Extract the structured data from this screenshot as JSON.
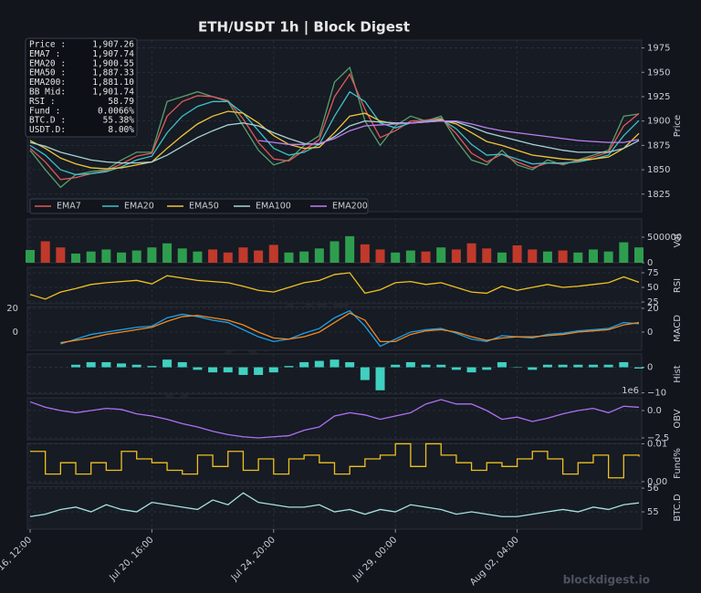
{
  "title": "ETH/USDT  1h  |  Block Digest",
  "watermark": "blockdigest.io",
  "info": [
    {
      "label": "Price  :",
      "value": "1,907.26"
    },
    {
      "label": "EMA7   :",
      "value": "1,907.74"
    },
    {
      "label": "EMA20  :",
      "value": "1,900.55"
    },
    {
      "label": "EMA50  :",
      "value": "1,887.33"
    },
    {
      "label": "EMA200:",
      "value": "1,881.10"
    },
    {
      "label": "BB Mid:",
      "value": "1,901.74"
    },
    {
      "label": "RSI    :",
      "value": "58.79"
    },
    {
      "label": "Fund   :",
      "value": "0.0066%"
    },
    {
      "label": "BTC.D :",
      "value": "55.38%"
    },
    {
      "label": "USDT.D:",
      "value": "8.00%"
    }
  ],
  "chart_data": [
    {
      "type": "line",
      "ylabel": "Price",
      "ylim": [
        1807,
        1983
      ],
      "yticks": [
        1825,
        1850,
        1875,
        1900,
        1925,
        1950,
        1975
      ],
      "grid": true,
      "values": [
        1870,
        1850,
        1832,
        1845,
        1848,
        1850,
        1860,
        1868,
        1868,
        1920,
        1925,
        1930,
        1925,
        1920,
        1895,
        1870,
        1855,
        1860,
        1875,
        1885,
        1940,
        1955,
        1900,
        1875,
        1895,
        1905,
        1900,
        1905,
        1880,
        1860,
        1855,
        1870,
        1855,
        1850,
        1860,
        1855,
        1860,
        1865,
        1870,
        1905,
        1907.26
      ],
      "color": "#5a9e6a",
      "legend": "lower left",
      "series": [
        {
          "name": "EMA7",
          "color": "#e05a5a",
          "values": [
            1872,
            1858,
            1840,
            1842,
            1846,
            1849,
            1856,
            1864,
            1867,
            1905,
            1920,
            1926,
            1925,
            1921,
            1902,
            1878,
            1861,
            1859,
            1870,
            1881,
            1925,
            1948,
            1912,
            1883,
            1890,
            1900,
            1901,
            1903,
            1887,
            1867,
            1858,
            1866,
            1858,
            1852,
            1857,
            1856,
            1859,
            1863,
            1868,
            1895,
            1907.74
          ]
        },
        {
          "name": "EMA20",
          "color": "#3fc1c9",
          "values": [
            1875,
            1865,
            1850,
            1845,
            1846,
            1848,
            1853,
            1860,
            1864,
            1888,
            1905,
            1915,
            1920,
            1920,
            1908,
            1890,
            1872,
            1865,
            1868,
            1876,
            1905,
            1930,
            1920,
            1898,
            1893,
            1898,
            1900,
            1902,
            1892,
            1876,
            1865,
            1866,
            1861,
            1856,
            1857,
            1857,
            1858,
            1861,
            1865,
            1885,
            1900.55
          ]
        },
        {
          "name": "EMA50",
          "color": "#f0c53a",
          "values": [
            1880,
            1872,
            1862,
            1856,
            1852,
            1851,
            1852,
            1855,
            1858,
            1872,
            1885,
            1897,
            1905,
            1910,
            1908,
            1898,
            1885,
            1876,
            1872,
            1873,
            1888,
            1905,
            1908,
            1900,
            1897,
            1898,
            1899,
            1901,
            1897,
            1888,
            1879,
            1875,
            1870,
            1865,
            1863,
            1861,
            1860,
            1861,
            1863,
            1872,
            1887.33
          ]
        },
        {
          "name": "EMA100",
          "color": "#a9d3d6",
          "values": [
            1878,
            1874,
            1868,
            1864,
            1860,
            1858,
            1857,
            1857,
            1858,
            1865,
            1874,
            1883,
            1890,
            1896,
            1898,
            1895,
            1888,
            1882,
            1877,
            1876,
            1884,
            1895,
            1900,
            1899,
            1898,
            1898,
            1899,
            1900,
            1899,
            1894,
            1888,
            1884,
            1880,
            1876,
            1873,
            1870,
            1868,
            1868,
            1868,
            1872,
            1880
          ]
        },
        {
          "name": "EMA200",
          "color": "#c07ef0",
          "values": [
            null,
            null,
            null,
            null,
            null,
            null,
            null,
            null,
            null,
            null,
            null,
            null,
            null,
            null,
            null,
            1880,
            1878,
            1876,
            1876,
            1877,
            1882,
            1890,
            1895,
            1896,
            1897,
            1898,
            1899,
            1900,
            1900,
            1897,
            1893,
            1890,
            1888,
            1886,
            1884,
            1882,
            1880,
            1879,
            1878,
            1878,
            1881.1
          ]
        }
      ]
    },
    {
      "type": "volume",
      "ylabel": "Vol",
      "ylim": [
        0,
        857000
      ],
      "yticks": [
        0,
        500000
      ],
      "grid": true,
      "up_color": "#2e9e4e",
      "down_color": "#c0392b",
      "values": [
        250000,
        420000,
        300000,
        180000,
        220000,
        260000,
        200000,
        240000,
        300000,
        380000,
        280000,
        220000,
        260000,
        200000,
        300000,
        240000,
        350000,
        200000,
        220000,
        280000,
        420000,
        520000,
        360000,
        260000,
        200000,
        240000,
        220000,
        300000,
        260000,
        380000,
        280000,
        200000,
        340000,
        260000,
        220000,
        240000,
        200000,
        260000,
        220000,
        400000,
        300000
      ]
    },
    {
      "type": "line",
      "ylabel": "RSI",
      "ylim": [
        21.9,
        84.4
      ],
      "yticks": [
        25,
        50,
        75
      ],
      "grid": true,
      "color": "#f0c020",
      "values": [
        38,
        30,
        42,
        48,
        55,
        58,
        60,
        62,
        56,
        70,
        66,
        62,
        60,
        58,
        52,
        45,
        42,
        50,
        58,
        62,
        72,
        75,
        40,
        46,
        58,
        60,
        55,
        58,
        50,
        42,
        40,
        52,
        45,
        50,
        55,
        50,
        52,
        55,
        58,
        68,
        58.79
      ]
    },
    {
      "type": "line",
      "ylabel": "MACD",
      "ylim": [
        -15.4,
        21.5
      ],
      "yticks": [
        0,
        20
      ],
      "grid": true,
      "left_ticks": true,
      "series": [
        {
          "color": "#1ea0e8",
          "values": [
            null,
            null,
            -10,
            -6,
            -2,
            0,
            2,
            4,
            5,
            12,
            15,
            13,
            10,
            8,
            2,
            -4,
            -8,
            -6,
            -1,
            3,
            12,
            18,
            5,
            -12,
            -6,
            0,
            2,
            3,
            -1,
            -6,
            -8,
            -3,
            -4,
            -5,
            -2,
            -1,
            1,
            2,
            3,
            8,
            7
          ]
        },
        {
          "color": "#f08a20",
          "values": [
            null,
            null,
            -9,
            -7,
            -5,
            -2,
            0,
            2,
            4,
            9,
            13,
            14,
            12,
            10,
            6,
            0,
            -5,
            -6,
            -4,
            0,
            8,
            16,
            10,
            -8,
            -8,
            -2,
            1,
            2,
            0,
            -4,
            -7,
            -5,
            -4,
            -4,
            -3,
            -2,
            0,
            1,
            2,
            6,
            8
          ]
        }
      ]
    },
    {
      "type": "bar",
      "ylabel": "Hist",
      "ylim": [
        -10.5,
        5.2
      ],
      "yticks": [
        {
          "value": -10,
          "label": "−10"
        },
        0
      ],
      "grid": true,
      "color": "#40d0c0",
      "values": [
        null,
        null,
        null,
        1,
        2,
        2,
        1.5,
        1,
        0.5,
        3,
        2,
        -1,
        -2,
        -2,
        -3,
        -3,
        -2,
        0.5,
        2,
        2.5,
        3,
        2,
        -5,
        -9,
        1,
        2,
        1,
        1,
        -1,
        -2,
        -1,
        2,
        0,
        -1,
        1,
        1,
        1,
        1,
        1,
        2,
        -0.5
      ]
    },
    {
      "type": "line",
      "ylabel": "OBV",
      "ylim": [
        -2.67,
        1.17
      ],
      "yticks": [
        {
          "value": -2.5,
          "label": "−2.5"
        },
        {
          "value": 0,
          "label": "0.0"
        }
      ],
      "offset_label": "1e6",
      "grid": true,
      "color": "#b070f0",
      "values": [
        0.8,
        0.3,
        0.0,
        -0.2,
        0.0,
        0.2,
        0.1,
        -0.3,
        -0.5,
        -0.8,
        -1.2,
        -1.5,
        -1.9,
        -2.2,
        -2.4,
        -2.5,
        -2.4,
        -2.3,
        -1.8,
        -1.5,
        -0.5,
        -0.2,
        -0.4,
        -0.8,
        -0.5,
        -0.2,
        0.6,
        1.0,
        0.6,
        0.6,
        0.0,
        -0.8,
        -0.6,
        -1.0,
        -0.7,
        -0.3,
        0.0,
        0.2,
        -0.2,
        0.4,
        0.3
      ]
    },
    {
      "type": "step",
      "ylabel": "Fund%",
      "ylim": [
        -0.0005,
        0.0101
      ],
      "yticks": [
        {
          "value": 0,
          "label": "0.00"
        },
        0.01
      ],
      "grid": true,
      "color": "#f0c020",
      "values": [
        0.008,
        0.002,
        0.005,
        0.002,
        0.005,
        0.003,
        0.008,
        0.006,
        0.005,
        0.003,
        0.002,
        0.007,
        0.004,
        0.008,
        0.003,
        0.006,
        0.002,
        0.006,
        0.007,
        0.005,
        0.002,
        0.004,
        0.006,
        0.007,
        0.01,
        0.004,
        0.01,
        0.007,
        0.005,
        0.003,
        0.005,
        0.004,
        0.006,
        0.008,
        0.006,
        0.002,
        0.005,
        0.007,
        0.001,
        0.007,
        0.0066
      ]
    },
    {
      "type": "line",
      "ylabel": "BTC.D",
      "ylim": [
        54.27,
        56.08
      ],
      "yticks": [
        55,
        56
      ],
      "grid": true,
      "color": "#a8e0e0",
      "values": [
        54.8,
        54.9,
        55.1,
        55.2,
        55.0,
        55.3,
        55.1,
        55.0,
        55.4,
        55.3,
        55.2,
        55.1,
        55.5,
        55.3,
        55.8,
        55.4,
        55.3,
        55.2,
        55.2,
        55.3,
        55.0,
        55.1,
        54.9,
        55.1,
        55.0,
        55.3,
        55.2,
        55.1,
        54.9,
        55.0,
        54.9,
        54.8,
        54.8,
        54.9,
        55.0,
        55.1,
        55.0,
        55.2,
        55.1,
        55.3,
        55.38
      ],
      "categories": [
        "Jul 16, 12:00",
        null,
        null,
        null,
        null,
        null,
        null,
        null,
        "Jul 20, 16:00",
        null,
        null,
        null,
        null,
        null,
        null,
        null,
        "Jul 24, 20:00",
        null,
        null,
        null,
        null,
        null,
        null,
        null,
        "Jul 29, 00:00",
        null,
        null,
        null,
        null,
        null,
        null,
        null,
        "Aug 02, 04:00",
        null,
        null,
        null,
        null,
        null,
        null,
        null,
        null
      ]
    }
  ]
}
